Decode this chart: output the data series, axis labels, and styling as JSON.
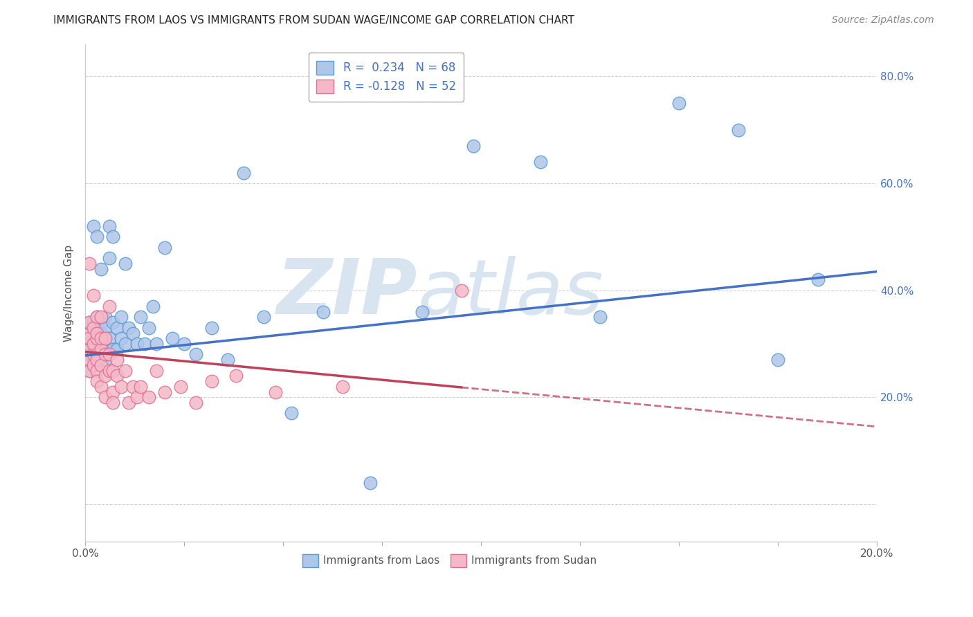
{
  "title": "IMMIGRANTS FROM LAOS VS IMMIGRANTS FROM SUDAN WAGE/INCOME GAP CORRELATION CHART",
  "source": "Source: ZipAtlas.com",
  "ylabel": "Wage/Income Gap",
  "x_min": 0.0,
  "x_max": 0.2,
  "y_min": -0.07,
  "y_max": 0.86,
  "laos_color": "#aec6e8",
  "laos_edge_color": "#5b9bd5",
  "sudan_color": "#f4b8c8",
  "sudan_edge_color": "#e07090",
  "laos_R": 0.234,
  "laos_N": 68,
  "sudan_R": -0.128,
  "sudan_N": 52,
  "trend_laos_color": "#4472c4",
  "trend_sudan_color": "#c0415a",
  "watermark_color": "#d8e4f0",
  "laos_x": [
    0.001,
    0.001,
    0.001,
    0.001,
    0.001,
    0.002,
    0.002,
    0.002,
    0.002,
    0.002,
    0.002,
    0.002,
    0.003,
    0.003,
    0.003,
    0.003,
    0.003,
    0.003,
    0.003,
    0.004,
    0.004,
    0.004,
    0.004,
    0.004,
    0.005,
    0.005,
    0.005,
    0.005,
    0.005,
    0.006,
    0.006,
    0.006,
    0.007,
    0.007,
    0.007,
    0.008,
    0.008,
    0.009,
    0.009,
    0.01,
    0.01,
    0.011,
    0.012,
    0.013,
    0.014,
    0.015,
    0.016,
    0.017,
    0.018,
    0.02,
    0.022,
    0.025,
    0.028,
    0.032,
    0.036,
    0.04,
    0.045,
    0.052,
    0.06,
    0.072,
    0.085,
    0.098,
    0.115,
    0.13,
    0.15,
    0.165,
    0.175,
    0.185
  ],
  "laos_y": [
    0.3,
    0.28,
    0.32,
    0.25,
    0.34,
    0.27,
    0.31,
    0.33,
    0.26,
    0.29,
    0.34,
    0.52,
    0.29,
    0.32,
    0.27,
    0.35,
    0.31,
    0.28,
    0.5,
    0.3,
    0.34,
    0.28,
    0.32,
    0.44,
    0.27,
    0.31,
    0.35,
    0.29,
    0.33,
    0.31,
    0.46,
    0.52,
    0.29,
    0.34,
    0.5,
    0.33,
    0.29,
    0.31,
    0.35,
    0.3,
    0.45,
    0.33,
    0.32,
    0.3,
    0.35,
    0.3,
    0.33,
    0.37,
    0.3,
    0.48,
    0.31,
    0.3,
    0.28,
    0.33,
    0.27,
    0.62,
    0.35,
    0.17,
    0.36,
    0.04,
    0.36,
    0.67,
    0.64,
    0.35,
    0.75,
    0.7,
    0.27,
    0.42
  ],
  "sudan_x": [
    0.001,
    0.001,
    0.001,
    0.001,
    0.001,
    0.001,
    0.001,
    0.002,
    0.002,
    0.002,
    0.002,
    0.002,
    0.003,
    0.003,
    0.003,
    0.003,
    0.003,
    0.003,
    0.003,
    0.004,
    0.004,
    0.004,
    0.004,
    0.004,
    0.005,
    0.005,
    0.005,
    0.005,
    0.006,
    0.006,
    0.006,
    0.007,
    0.007,
    0.007,
    0.008,
    0.008,
    0.009,
    0.01,
    0.011,
    0.012,
    0.013,
    0.014,
    0.016,
    0.018,
    0.02,
    0.024,
    0.028,
    0.032,
    0.038,
    0.048,
    0.065,
    0.095
  ],
  "sudan_y": [
    0.29,
    0.32,
    0.27,
    0.34,
    0.25,
    0.31,
    0.45,
    0.28,
    0.3,
    0.26,
    0.33,
    0.39,
    0.28,
    0.31,
    0.25,
    0.35,
    0.27,
    0.32,
    0.23,
    0.26,
    0.29,
    0.31,
    0.35,
    0.22,
    0.28,
    0.24,
    0.31,
    0.2,
    0.25,
    0.28,
    0.37,
    0.21,
    0.25,
    0.19,
    0.24,
    0.27,
    0.22,
    0.25,
    0.19,
    0.22,
    0.2,
    0.22,
    0.2,
    0.25,
    0.21,
    0.22,
    0.19,
    0.23,
    0.24,
    0.21,
    0.22,
    0.4
  ],
  "trend_laos_x0": 0.0,
  "trend_laos_y0": 0.278,
  "trend_laos_x1": 0.2,
  "trend_laos_y1": 0.435,
  "trend_sudan_x0": 0.0,
  "trend_sudan_y0": 0.285,
  "trend_sudan_x1": 0.2,
  "trend_sudan_y1": 0.145,
  "trend_sudan_solid_end": 0.095
}
